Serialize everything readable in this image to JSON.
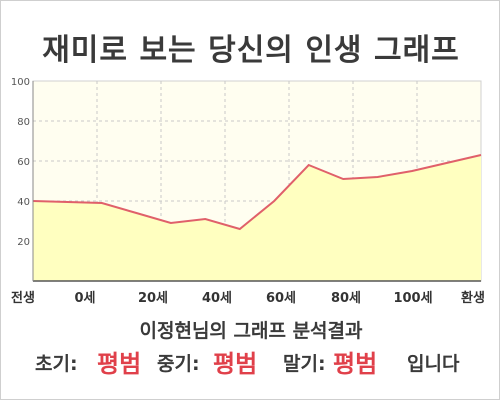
{
  "page": {
    "title": "재미로 보는 당신의 인생 그래프"
  },
  "chart_data": {
    "type": "area",
    "x_labels": [
      "전생",
      "0세",
      "20세",
      "40세",
      "60세",
      "80세",
      "100세",
      "환생"
    ],
    "x": [
      -20,
      0,
      10,
      20,
      30,
      40,
      50,
      60,
      70,
      80,
      90,
      100,
      110
    ],
    "y": [
      40,
      39,
      34,
      29,
      31,
      26,
      40,
      58,
      51,
      52,
      55,
      59,
      63
    ],
    "xlim": [
      -20,
      110
    ],
    "ylim": [
      0,
      100
    ],
    "y_ticks": [
      20,
      40,
      60,
      80,
      100
    ],
    "grid": true,
    "colors": {
      "line": "#e0606a",
      "fill": "#ffffc0",
      "plot_bg": "#fffef0"
    }
  },
  "result": {
    "summary": "이정현님의 그래프 분석결과",
    "early_label": "초기:",
    "early_value": "평범",
    "middle_label": "중기:",
    "middle_value": "평범",
    "late_label": "말기:",
    "late_value": "평범",
    "suffix": "입니다"
  }
}
